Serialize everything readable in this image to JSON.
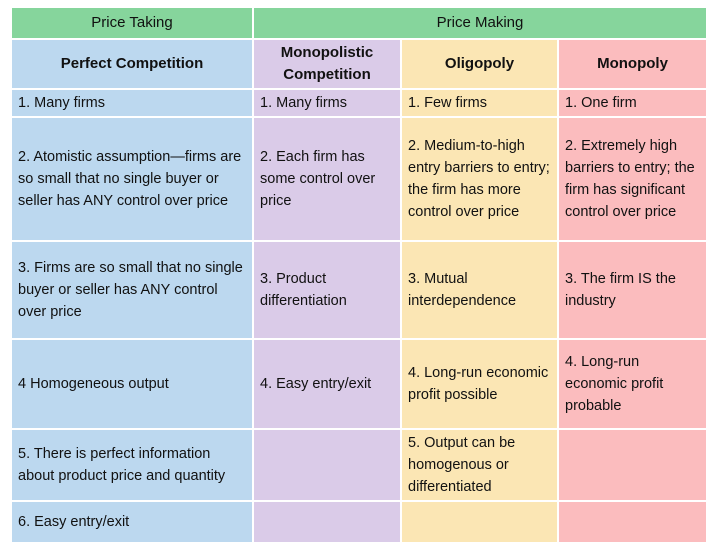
{
  "header": {
    "price_taking": "Price Taking",
    "price_making": "Price Making"
  },
  "columns": {
    "perfect_competition": "Perfect Competition",
    "monopolistic_competition": "Monopolistic Competition",
    "oligopoly": "Oligopoly",
    "monopoly": "Monopoly"
  },
  "rows": [
    {
      "perfect": "1. Many firms",
      "monopolistic": "1. Many firms",
      "oligopoly": "1. Few firms",
      "monopoly": "1. One firm"
    },
    {
      "perfect": "2. Atomistic assumption—firms are so small that no single buyer or seller has ANY control over price",
      "monopolistic": "2. Each firm has some control over price",
      "oligopoly": "2. Medium-to-high entry barriers to entry; the firm has more control over price",
      "monopoly": "2. Extremely high barriers to entry; the firm has significant control over price"
    },
    {
      "perfect": "3. Firms are so small that no single buyer or seller has ANY control over price",
      "monopolistic": "3. Product differentiation",
      "oligopoly": "3. Mutual interdependence",
      "monopoly": "3. The firm IS the industry"
    },
    {
      "perfect": "4 Homogeneous output",
      "monopolistic": "4. Easy entry/exit",
      "oligopoly": "4. Long-run economic profit possible",
      "monopoly": "4. Long-run economic profit probable"
    },
    {
      "perfect": "5. There is perfect information about product price and quantity",
      "monopolistic": "",
      "oligopoly": "5. Output can be homogenous or differentiated",
      "monopoly": ""
    },
    {
      "perfect": "6. Easy entry/exit",
      "monopolistic": "",
      "oligopoly": "",
      "monopoly": ""
    }
  ],
  "colors": {
    "header_green": "#86d59c",
    "perfect_blue": "#bcd8ef",
    "monopolistic_lavender": "#dacbe8",
    "oligopoly_yellow": "#fbe6b4",
    "monopoly_pink": "#fbbcbe"
  }
}
